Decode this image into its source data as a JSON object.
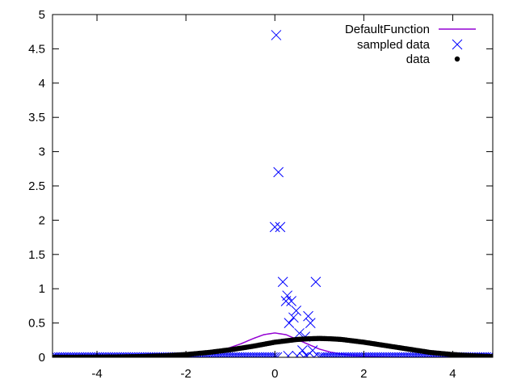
{
  "chart_data": {
    "type": "scatter",
    "title": "",
    "xlabel": "",
    "ylabel": "",
    "xlim": [
      -5,
      4.9
    ],
    "ylim": [
      0,
      5
    ],
    "x_ticks": [
      -4,
      -2,
      0,
      2,
      4
    ],
    "x_tick_labels": [
      "-4",
      "-2",
      "0",
      "2",
      "4"
    ],
    "y_ticks": [
      0,
      0.5,
      1,
      1.5,
      2,
      2.5,
      3,
      3.5,
      4,
      4.5,
      5
    ],
    "y_tick_labels": [
      "0",
      "0.5",
      "1",
      "1.5",
      "2",
      "2.5",
      "3",
      "3.5",
      "4",
      "4.5",
      "5"
    ],
    "grid": false,
    "zero_axis": true,
    "legend_position": "top-right",
    "legend": [
      "DefaultFunction",
      "sampled data",
      "data"
    ],
    "series": [
      {
        "name": "DefaultFunction",
        "kind": "line",
        "color": "#9400d3",
        "x": [
          -5,
          -4.5,
          -4,
          -3.5,
          -3,
          -2.5,
          -2,
          -1.75,
          -1.5,
          -1.25,
          -1,
          -0.75,
          -0.5,
          -0.25,
          0,
          0.25,
          0.5,
          0.75,
          1,
          1.25,
          1.5,
          1.75,
          2,
          2.5,
          3,
          3.5,
          4,
          4.5,
          4.9
        ],
        "y": [
          0,
          0,
          0,
          0,
          0.001,
          0.004,
          0.02,
          0.035,
          0.058,
          0.09,
          0.143,
          0.2,
          0.27,
          0.33,
          0.355,
          0.33,
          0.26,
          0.19,
          0.12,
          0.075,
          0.046,
          0.028,
          0.017,
          0.006,
          0.002,
          0.001,
          0,
          0,
          0
        ]
      },
      {
        "name": "sampled data",
        "kind": "markers",
        "marker": "x",
        "color": "#0000ff",
        "x": [
          0.03,
          0.08,
          0.0,
          0.12,
          0.18,
          0.25,
          0.28,
          0.32,
          0.37,
          0.42,
          0.48,
          0.55,
          0.62,
          0.68,
          0.75,
          0.8,
          0.85,
          0.92,
          0.3,
          0.5,
          0.65,
          0.72,
          0.88
        ],
        "y": [
          4.7,
          2.7,
          1.9,
          1.9,
          1.1,
          0.82,
          0.9,
          0.5,
          0.82,
          0.58,
          0.68,
          0.35,
          0.1,
          0.3,
          0.6,
          0.5,
          0.1,
          1.1,
          0.02,
          0.02,
          0.0,
          0.02,
          0.0
        ],
        "baseline_x": [
          -5,
          4.9
        ],
        "baseline_y": 0,
        "baseline_gap": [
          0.05,
          0.98
        ]
      },
      {
        "name": "data",
        "kind": "markers",
        "marker": "dot",
        "color": "#000000",
        "x": [
          -5,
          -4.5,
          -4,
          -3.5,
          -3,
          -2.5,
          -2,
          -1.5,
          -1,
          -0.5,
          0,
          0.25,
          0.5,
          0.75,
          1,
          1.25,
          1.5,
          2,
          2.5,
          3,
          3.5,
          4,
          4.5,
          4.9
        ],
        "y": [
          0,
          0.001,
          0.003,
          0.006,
          0.012,
          0.022,
          0.04,
          0.07,
          0.11,
          0.16,
          0.22,
          0.24,
          0.26,
          0.27,
          0.275,
          0.27,
          0.26,
          0.22,
          0.17,
          0.12,
          0.07,
          0.04,
          0.02,
          0.01
        ],
        "density_step": 0.04
      }
    ]
  }
}
